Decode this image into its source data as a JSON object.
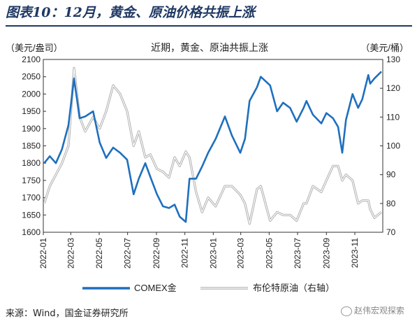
{
  "figure": {
    "title": "图表10：12月，黄金、原油价格共振上涨",
    "source": "来源：Wind，国金证券研究所",
    "watermark": "赵伟宏观探索"
  },
  "chart_data": {
    "type": "line",
    "title": "近期，黄金、原油共振上涨",
    "y_left_unit": "（美元/盎司）",
    "y_right_unit": "（美元/桶）",
    "y_left_range": [
      1600,
      2100
    ],
    "y_right_range": [
      70,
      130
    ],
    "y_left_ticks": [
      1600,
      1650,
      1700,
      1750,
      1800,
      1850,
      1900,
      1950,
      2000,
      2050,
      2100
    ],
    "y_right_ticks": [
      70,
      80,
      90,
      100,
      110,
      120,
      130
    ],
    "x_range": [
      "2022-01",
      "2023-12"
    ],
    "x_ticks": [
      "2022-01",
      "2022-03",
      "2022-05",
      "2022-07",
      "2022-09",
      "2022-11",
      "2023-01",
      "2023-03",
      "2023-05",
      "2023-07",
      "2023-09",
      "2023-11"
    ],
    "grid": false,
    "legend_position": "bottom",
    "colors": {
      "gold": "#1f6fbf",
      "oil": "#b0b0b0",
      "axis": "#333333",
      "title": "#1f3864"
    },
    "series": [
      {
        "name": "COMEX金",
        "axis": "left",
        "x": [
          "2022-01-03",
          "2022-01-15",
          "2022-01-28",
          "2022-02-10",
          "2022-02-24",
          "2022-03-08",
          "2022-03-20",
          "2022-04-01",
          "2022-04-18",
          "2022-05-02",
          "2022-05-16",
          "2022-05-31",
          "2022-06-15",
          "2022-06-30",
          "2022-07-14",
          "2022-07-25",
          "2022-08-08",
          "2022-08-19",
          "2022-09-02",
          "2022-09-15",
          "2022-09-28",
          "2022-10-10",
          "2022-10-21",
          "2022-11-03",
          "2022-11-11",
          "2022-11-25",
          "2022-12-08",
          "2022-12-21",
          "2023-01-06",
          "2023-01-26",
          "2023-02-10",
          "2023-02-28",
          "2023-03-10",
          "2023-03-20",
          "2023-04-05",
          "2023-04-13",
          "2023-05-03",
          "2023-05-18",
          "2023-05-31",
          "2023-06-15",
          "2023-06-29",
          "2023-07-14",
          "2023-07-20",
          "2023-08-03",
          "2023-08-21",
          "2023-09-01",
          "2023-09-15",
          "2023-09-26",
          "2023-10-05",
          "2023-10-13",
          "2023-10-27",
          "2023-11-08",
          "2023-11-17",
          "2023-11-30",
          "2023-12-04",
          "2023-12-13",
          "2023-12-28"
        ],
        "values": [
          1800,
          1820,
          1800,
          1840,
          1910,
          2045,
          1930,
          1935,
          1950,
          1860,
          1815,
          1845,
          1830,
          1810,
          1710,
          1755,
          1800,
          1760,
          1710,
          1675,
          1670,
          1680,
          1645,
          1630,
          1755,
          1755,
          1790,
          1830,
          1870,
          1935,
          1880,
          1830,
          1870,
          1980,
          2020,
          2050,
          2025,
          1950,
          1975,
          1960,
          1920,
          1960,
          1980,
          1940,
          1915,
          1945,
          1930,
          1905,
          1830,
          1925,
          2000,
          1960,
          1985,
          2055,
          2030,
          2045,
          2065
        ]
      },
      {
        "name": "布伦特原油（右轴）",
        "axis": "right",
        "x": [
          "2022-01-03",
          "2022-01-15",
          "2022-01-28",
          "2022-02-10",
          "2022-02-24",
          "2022-03-08",
          "2022-03-20",
          "2022-04-01",
          "2022-04-18",
          "2022-05-02",
          "2022-05-16",
          "2022-05-31",
          "2022-06-15",
          "2022-06-30",
          "2022-07-14",
          "2022-07-25",
          "2022-08-08",
          "2022-08-19",
          "2022-09-02",
          "2022-09-15",
          "2022-09-28",
          "2022-10-10",
          "2022-10-21",
          "2022-11-03",
          "2022-11-11",
          "2022-11-25",
          "2022-12-08",
          "2022-12-21",
          "2023-01-06",
          "2023-01-26",
          "2023-02-10",
          "2023-02-28",
          "2023-03-10",
          "2023-03-20",
          "2023-04-05",
          "2023-04-13",
          "2023-05-03",
          "2023-05-18",
          "2023-05-31",
          "2023-06-15",
          "2023-06-29",
          "2023-07-14",
          "2023-07-20",
          "2023-08-03",
          "2023-08-21",
          "2023-09-01",
          "2023-09-15",
          "2023-09-26",
          "2023-10-05",
          "2023-10-13",
          "2023-10-27",
          "2023-11-08",
          "2023-11-17",
          "2023-11-30",
          "2023-12-04",
          "2023-12-13",
          "2023-12-28"
        ],
        "values": [
          80,
          86,
          90,
          94,
          100,
          127,
          110,
          105,
          110,
          106,
          112,
          121,
          118,
          112,
          100,
          105,
          96,
          97,
          92,
          91,
          89,
          96,
          93,
          98,
          96,
          84,
          77,
          82,
          79,
          86,
          86,
          83,
          80,
          73,
          85,
          86,
          74,
          77,
          76,
          76,
          74,
          80,
          80,
          86,
          84,
          88,
          93,
          93,
          88,
          90,
          88,
          80,
          81,
          81,
          78,
          75,
          77
        ]
      }
    ]
  }
}
